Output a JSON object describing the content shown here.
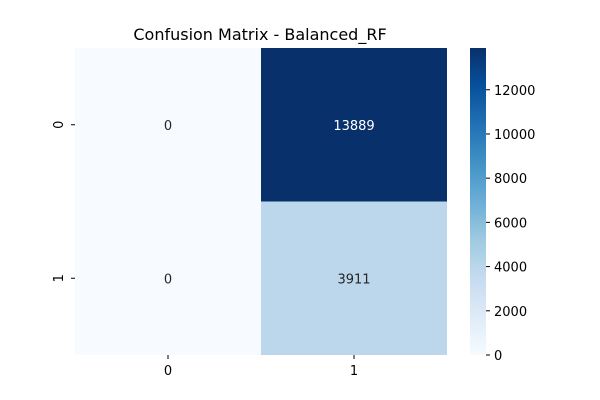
{
  "chart_data": {
    "type": "heatmap",
    "title": "Confusion Matrix - Balanced_RF",
    "xlabel": "",
    "ylabel": "",
    "x_categories": [
      "0",
      "1"
    ],
    "y_categories": [
      "0",
      "1"
    ],
    "matrix": [
      [
        0,
        13889
      ],
      [
        0,
        3911
      ]
    ],
    "cell_labels": [
      [
        "0",
        "13889"
      ],
      [
        "0",
        "3911"
      ]
    ],
    "colormap": "Blues",
    "colorbar": {
      "range": [
        0,
        13889
      ],
      "ticks": [
        0,
        2000,
        4000,
        6000,
        8000,
        10000,
        12000
      ],
      "tick_labels": [
        "0",
        "2000",
        "4000",
        "6000",
        "8000",
        "10000",
        "12000"
      ]
    },
    "grid": false,
    "colors": {
      "low": "#f7fbff",
      "high": "#08306b",
      "label_on_light": "#262626",
      "label_on_dark": "#ffffff"
    }
  }
}
